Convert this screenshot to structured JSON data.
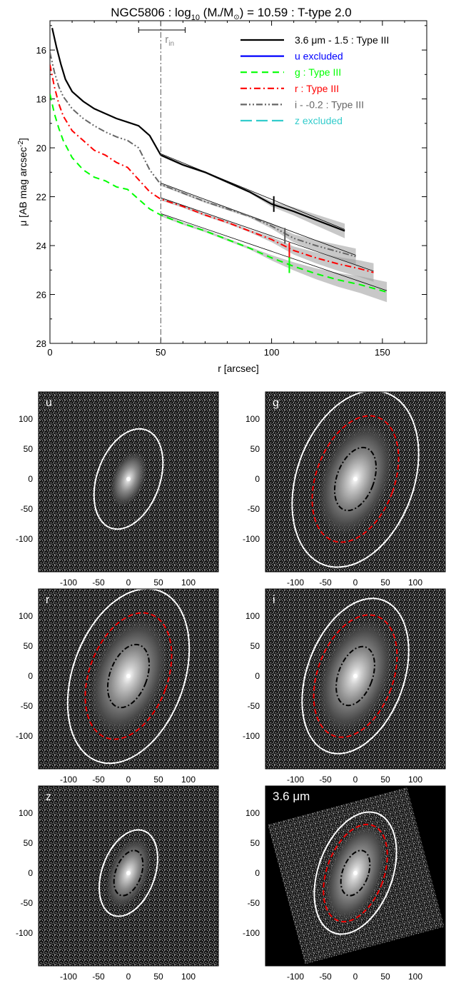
{
  "figure": {
    "title_main": "NGC5806 : log",
    "title_sub": "10",
    "title_mid": " (M",
    "title_star": "*",
    "title_slash": "/M",
    "title_sun": "⊙",
    "title_end": ") = 10.59 : T-type 2.0",
    "xlabel": "r [arcsec]",
    "ylabel_main": "μ [AB mag arcsec",
    "ylabel_exp": "-2",
    "ylabel_end": "]",
    "rin_main": "r",
    "rin_sub": "in"
  },
  "chart_data": [
    {
      "type": "line",
      "title": "NGC5806 : log10 (M*/M⊙) = 10.59 : T-type 2.0",
      "xlabel": "r [arcsec]",
      "ylabel": "μ [AB mag arcsec-2]",
      "xlim": [
        0,
        170
      ],
      "ylim": [
        28,
        14.8
      ],
      "y_inverted": true,
      "x_ticks": [
        "0",
        "50",
        "100",
        "150"
      ],
      "y_ticks": [
        "16",
        "18",
        "20",
        "22",
        "24",
        "26",
        "28"
      ],
      "legend_position": "top-right",
      "r_in": 50,
      "r_in_range": [
        40,
        61
      ],
      "series": [
        {
          "name": "3.6 μm - 1.5 : Type III",
          "color": "#000000",
          "dash": "solid",
          "x": [
            1,
            3,
            5,
            7,
            10,
            15,
            20,
            25,
            30,
            35,
            40,
            45,
            50,
            60,
            70,
            80,
            90,
            100,
            110,
            120,
            133
          ],
          "y": [
            15.1,
            15.9,
            16.6,
            17.2,
            17.7,
            18.1,
            18.4,
            18.6,
            18.8,
            18.95,
            19.1,
            19.5,
            20.3,
            20.7,
            21.0,
            21.4,
            21.8,
            22.3,
            22.6,
            22.95,
            23.4
          ]
        },
        {
          "name": "u excluded",
          "color": "#0000ff",
          "dash": "solid",
          "x": [],
          "y": []
        },
        {
          "name": "g : Type III",
          "color": "#00ff00",
          "dash": "dashed",
          "x": [
            0,
            2,
            4,
            6,
            10,
            15,
            20,
            25,
            30,
            35,
            40,
            45,
            50,
            60,
            70,
            80,
            90,
            100,
            110,
            120,
            130,
            140,
            152
          ],
          "y": [
            17.8,
            18.6,
            19.2,
            19.7,
            20.4,
            20.9,
            21.2,
            21.35,
            21.6,
            21.7,
            22.1,
            22.5,
            22.75,
            23.1,
            23.4,
            23.75,
            24.1,
            24.5,
            24.85,
            25.15,
            25.4,
            25.6,
            25.9
          ]
        },
        {
          "name": "r : Type III",
          "color": "#ff0000",
          "dash": "dash-dot",
          "x": [
            0,
            2,
            4,
            6,
            10,
            15,
            20,
            25,
            30,
            35,
            40,
            45,
            50,
            60,
            70,
            80,
            90,
            100,
            110,
            120,
            130,
            140,
            146
          ],
          "y": [
            16.6,
            17.5,
            18.2,
            18.7,
            19.3,
            19.7,
            20.1,
            20.3,
            20.6,
            20.8,
            21.3,
            21.8,
            22.1,
            22.4,
            22.75,
            23.05,
            23.4,
            23.75,
            24.2,
            24.5,
            24.75,
            24.95,
            25.1
          ]
        },
        {
          "name": "i - -0.2 : Type III",
          "color": "#666666",
          "dash": "dash-dot-dot",
          "x": [
            0,
            2,
            4,
            6,
            10,
            15,
            20,
            25,
            30,
            35,
            40,
            45,
            50,
            60,
            70,
            80,
            90,
            100,
            110,
            120,
            130,
            138
          ],
          "y": [
            16.1,
            16.9,
            17.5,
            17.9,
            18.4,
            18.8,
            19.1,
            19.35,
            19.55,
            19.7,
            20.0,
            20.9,
            21.5,
            21.85,
            22.2,
            22.5,
            22.8,
            23.2,
            23.7,
            24.0,
            24.25,
            24.45
          ]
        },
        {
          "name": "z excluded",
          "color": "#33cccc",
          "dash": "long-dash",
          "x": [],
          "y": []
        }
      ],
      "break_markers": [
        {
          "series": "3.6 μm - 1.5 : Type III",
          "r": 101,
          "mu": 22.3,
          "color": "#000000"
        },
        {
          "series": "i - -0.2 : Type III",
          "r": 106,
          "mu": 23.6,
          "color": "#555555"
        },
        {
          "series": "r : Type III",
          "r": 108,
          "mu": 24.2,
          "color": "#ff0000"
        },
        {
          "series": "g : Type III",
          "r": 108,
          "mu": 24.8,
          "color": "#00ff00"
        }
      ]
    },
    {
      "type": "image-grid",
      "x_ticks": [
        "-100",
        "-50",
        "0",
        "50",
        "100"
      ],
      "y_ticks": [
        "100",
        "50",
        "0",
        "-50",
        "-100"
      ],
      "panels": [
        {
          "label": "u",
          "ellipses": [
            "white-solid"
          ]
        },
        {
          "label": "g",
          "ellipses": [
            "white-solid",
            "red-dashed",
            "black-dash-dot"
          ]
        },
        {
          "label": "r",
          "ellipses": [
            "white-solid",
            "red-dashed",
            "black-dash-dot"
          ]
        },
        {
          "label": "i",
          "ellipses": [
            "white-solid",
            "red-dashed",
            "black-dash-dot"
          ]
        },
        {
          "label": "z",
          "ellipses": [
            "white-solid",
            "black-dash-dot"
          ]
        },
        {
          "label": "3.6 μm",
          "ellipses": [
            "white-solid",
            "red-dashed",
            "black-dash-dot"
          ]
        }
      ]
    }
  ]
}
